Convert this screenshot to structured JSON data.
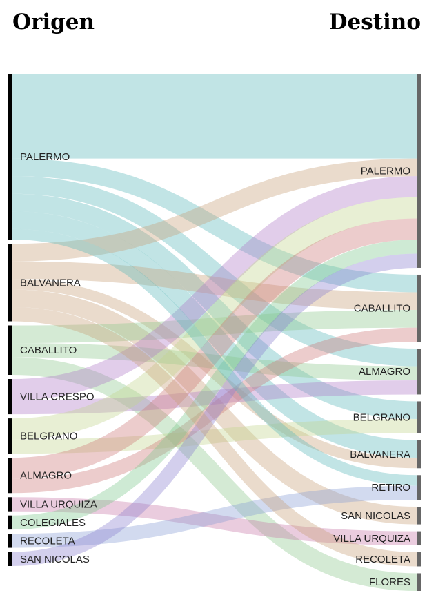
{
  "headers": {
    "left": "Origen",
    "right": "Destino"
  },
  "chart_data": {
    "type": "sankey",
    "sources": [
      {
        "name": "PALERMO",
        "color": "#5bb8bb"
      },
      {
        "name": "BALVANERA",
        "color": "#c8a07a"
      },
      {
        "name": "CABALLITO",
        "color": "#8fc98f"
      },
      {
        "name": "VILLA CRESPO",
        "color": "#b07cc8"
      },
      {
        "name": "BELGRANO",
        "color": "#c2d48f"
      },
      {
        "name": "ALMAGRO",
        "color": "#cc7a7a"
      },
      {
        "name": "VILLA URQUIZA",
        "color": "#c77aa8"
      },
      {
        "name": "COLEGIALES",
        "color": "#7fc88f"
      },
      {
        "name": "RECOLETA",
        "color": "#8a9fd6"
      },
      {
        "name": "SAN NICOLAS",
        "color": "#8c82d0"
      }
    ],
    "targets": [
      "PALERMO",
      "CABALLITO",
      "ALMAGRO",
      "BELGRANO",
      "BALVANERA",
      "RETIRO",
      "SAN NICOLAS",
      "VILLA URQUIZA",
      "RECOLETA",
      "FLORES"
    ],
    "flows": [
      {
        "source": "PALERMO",
        "target": "PALERMO",
        "value": 120
      },
      {
        "source": "PALERMO",
        "target": "CABALLITO",
        "value": 25
      },
      {
        "source": "PALERMO",
        "target": "ALMAGRO",
        "value": 25
      },
      {
        "source": "PALERMO",
        "target": "BELGRANO",
        "value": 25
      },
      {
        "source": "PALERMO",
        "target": "BALVANERA",
        "value": 25
      },
      {
        "source": "BALVANERA",
        "target": "PALERMO",
        "value": 25
      },
      {
        "source": "BALVANERA",
        "target": "CABALLITO",
        "value": 25
      },
      {
        "source": "BALVANERA",
        "target": "BALVANERA",
        "value": 15
      },
      {
        "source": "BALVANERA",
        "target": "SAN NICOLAS",
        "value": 25
      },
      {
        "source": "CABALLITO",
        "target": "CABALLITO",
        "value": 25
      },
      {
        "source": "CABALLITO",
        "target": "ALMAGRO",
        "value": 20
      },
      {
        "source": "CABALLITO",
        "target": "FLORES",
        "value": 25
      },
      {
        "source": "VILLA CRESPO",
        "target": "PALERMO",
        "value": 30
      },
      {
        "source": "VILLA CRESPO",
        "target": "ALMAGRO",
        "value": 20
      },
      {
        "source": "BELGRANO",
        "target": "PALERMO",
        "value": 30
      },
      {
        "source": "BELGRANO",
        "target": "BELGRANO",
        "value": 20
      },
      {
        "source": "ALMAGRO",
        "target": "PALERMO",
        "value": 30
      },
      {
        "source": "ALMAGRO",
        "target": "CABALLITO",
        "value": 20
      },
      {
        "source": "VILLA URQUIZA",
        "target": "VILLA URQUIZA",
        "value": 20
      },
      {
        "source": "COLEGIALES",
        "target": "PALERMO",
        "value": 20
      },
      {
        "source": "RECOLETA",
        "target": "RETIRO",
        "value": 20
      },
      {
        "source": "SAN NICOLAS",
        "target": "PALERMO",
        "value": 20
      },
      {
        "source": "PALERMO",
        "target": "RETIRO",
        "value": 15
      },
      {
        "source": "BALVANERA",
        "target": "RECOLETA",
        "value": 20
      }
    ]
  }
}
